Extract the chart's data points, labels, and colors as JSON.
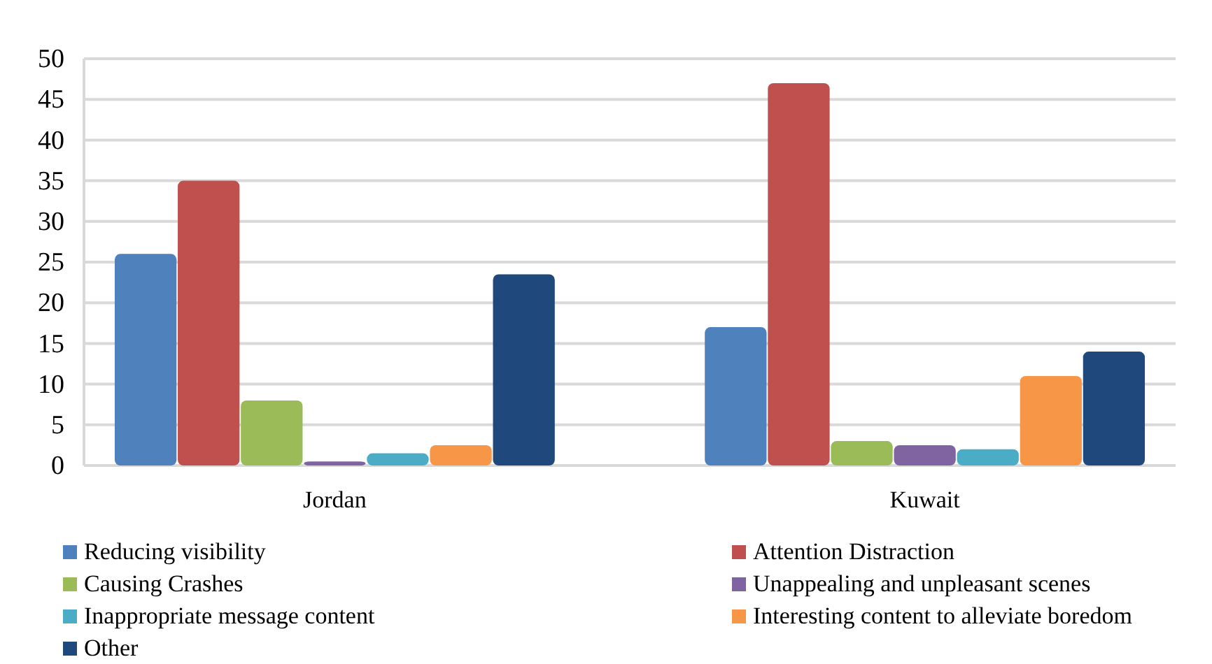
{
  "chart_data": {
    "type": "bar",
    "categories": [
      "Jordan",
      "Kuwait"
    ],
    "series": [
      {
        "name": "Reducing visibility",
        "color": "#4f81bd",
        "values": [
          26,
          17
        ]
      },
      {
        "name": "Attention Distraction",
        "color": "#c0504d",
        "values": [
          35,
          47
        ]
      },
      {
        "name": "Causing Crashes",
        "color": "#9bbb59",
        "values": [
          8,
          3
        ]
      },
      {
        "name": "Unappealing and unpleasant scenes",
        "color": "#8064a2",
        "values": [
          0.5,
          2.5
        ]
      },
      {
        "name": "Inappropriate message content",
        "color": "#4bacc6",
        "values": [
          1.5,
          2
        ]
      },
      {
        "name": "Interesting content to alleviate boredom",
        "color": "#f79646",
        "values": [
          2.5,
          11
        ]
      },
      {
        "name": "Other",
        "color": "#1f497d",
        "values": [
          23.5,
          14
        ]
      }
    ],
    "ylim": [
      0,
      50
    ],
    "yticks": [
      0,
      5,
      10,
      15,
      20,
      25,
      30,
      35,
      40,
      45,
      50
    ],
    "grid": "y",
    "legend": "bottom"
  }
}
